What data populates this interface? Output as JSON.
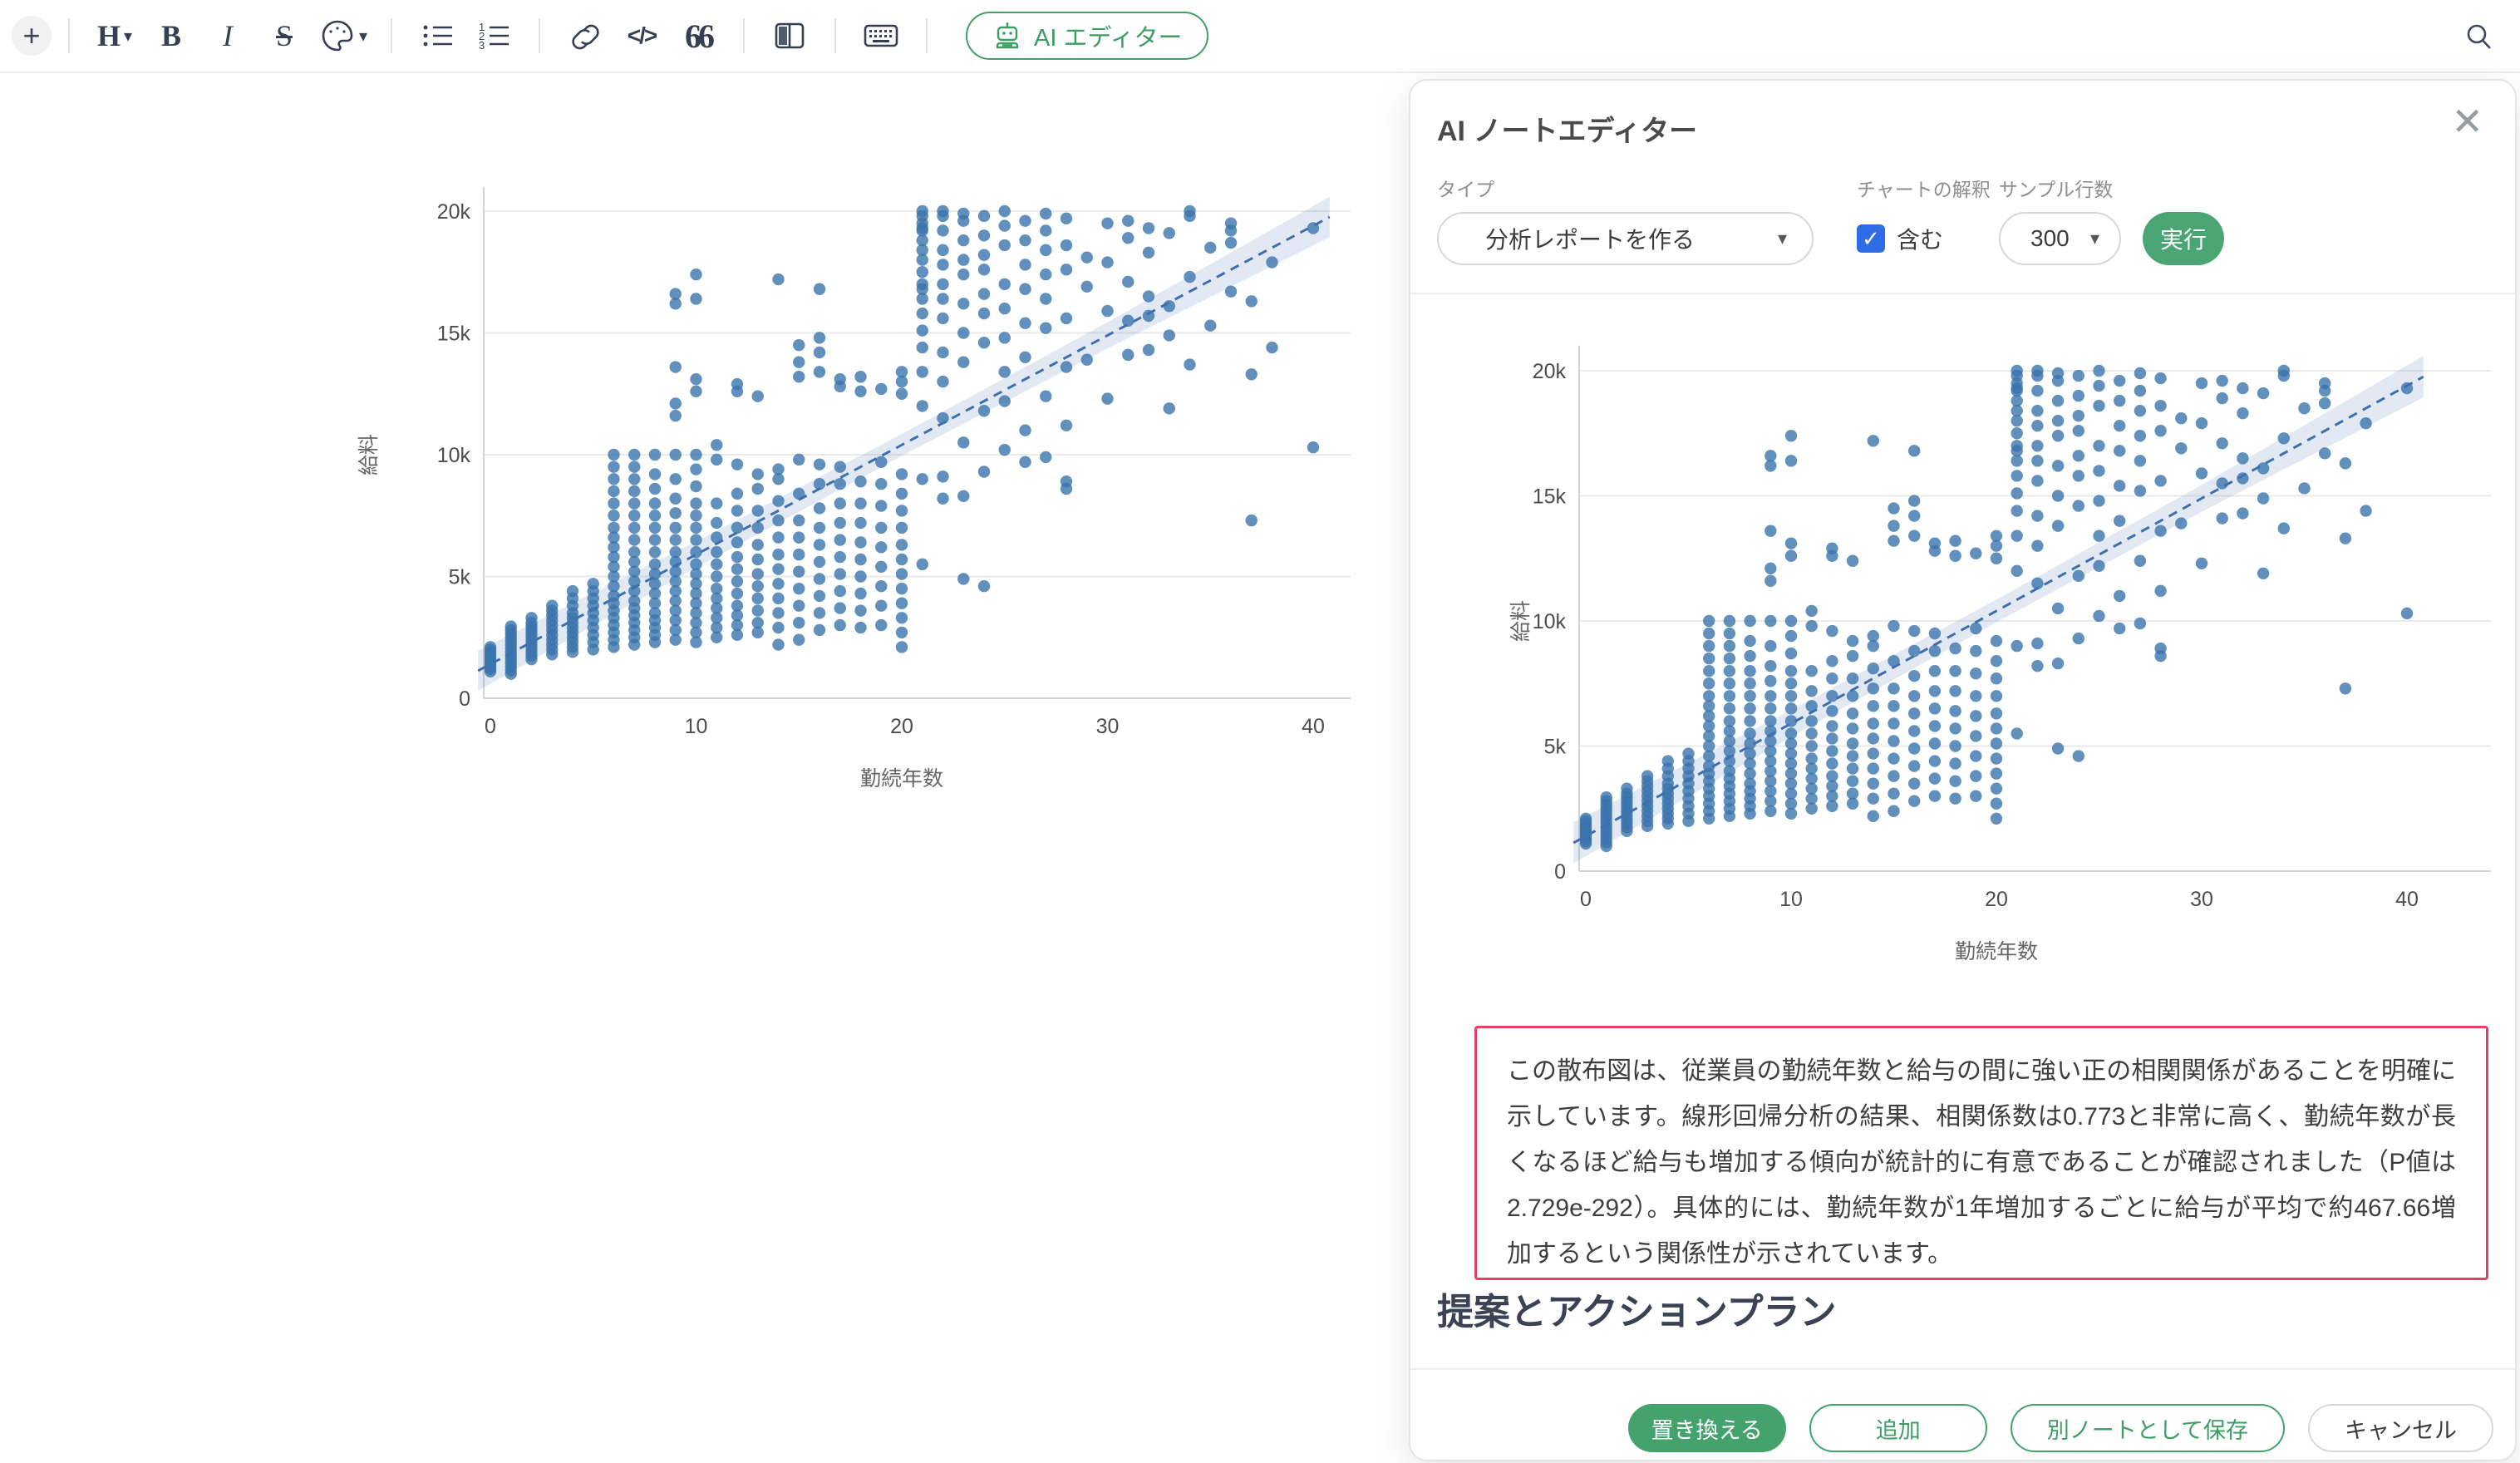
{
  "toolbar": {
    "plus_glyph": "+",
    "heading_glyph": "H",
    "bold_glyph": "B",
    "italic_glyph": "I",
    "strikethrough_glyph": "S",
    "code_glyph": "</>",
    "quote_glyph": "66",
    "caret_glyph": "▾",
    "ai_editor_label": "AI エディター",
    "icon_names": [
      "plus",
      "heading",
      "bold",
      "italic",
      "strikethrough",
      "text-color",
      "bulleted-list",
      "numbered-list",
      "link",
      "code",
      "quote",
      "columns",
      "keyboard",
      "ai-editor",
      "search"
    ]
  },
  "panel": {
    "title": "AI ノートエディター",
    "close_glyph": "✕",
    "controls": {
      "type_label": "タイプ",
      "type_value": "分析レポートを作る",
      "interpretation_label": "チャートの解釈",
      "interpretation_checkbox_label": "含む",
      "interpretation_checked": true,
      "check_glyph": "✓",
      "sample_rows_label": "サンプル行数",
      "sample_rows_value": "300",
      "run_label": "実行"
    },
    "analysis_text": "この散布図は、従業員の勤続年数と給与の間に強い正の相関関係があることを明確に示しています。線形回帰分析の結果、相関係数は0.773と非常に高く、勤続年数が長くなるほど給与も増加する傾向が統計的に有意であることが確認されました（P値は2.729e-292）。具体的には、勤続年数が1年増加するごとに給与が平均で約467.66増加するという関係性が示されています。",
    "section_heading": "提案とアクションプラン",
    "footer": {
      "replace": "置き換える",
      "add": "追加",
      "save_as_new": "別ノートとして保存",
      "cancel": "キャンセル"
    }
  },
  "colors": {
    "accent_green": "#45a36e",
    "checkbox_blue": "#2e6ce8",
    "highlight_red": "#e83e63",
    "point_blue": "#3b74ad",
    "trend_blue": "#3e6fae",
    "grid_gray": "#eaeaea"
  },
  "chart_data": {
    "type": "scatter",
    "title": "",
    "xlabel": "勤続年数",
    "ylabel": "給料",
    "x_ticks": [
      0,
      10,
      20,
      30,
      40
    ],
    "y_ticks_k": [
      0,
      5,
      10,
      15,
      20
    ],
    "y_tick_labels": [
      "0",
      "5k",
      "10k",
      "15k",
      "20k"
    ],
    "xlim": [
      -1,
      42
    ],
    "ylim_k": [
      0,
      21.5
    ],
    "grid": true,
    "legend": false,
    "instances": [
      "editor-note",
      "ai-panel-preview"
    ],
    "regression": {
      "slope_per_year": 467.66,
      "correlation": 0.773,
      "p_value": "2.729e-292",
      "line_style": "dashed",
      "confidence_band": true,
      "draw_intercept_k": 1.4,
      "draw_slope_k_per_year": 0.45
    },
    "points_unit": "y values are salary in thousands (k)",
    "points_by_year": {
      "0": [
        1.1,
        1.2,
        1.3,
        1.4,
        1.5,
        1.6,
        1.7,
        1.8,
        1.9,
        2.0,
        2.1
      ],
      "1": [
        1.0,
        1.15,
        1.3,
        1.45,
        1.6,
        1.75,
        1.9,
        2.05,
        2.2,
        2.35,
        2.5,
        2.65,
        2.8,
        2.95
      ],
      "2": [
        1.6,
        1.75,
        1.9,
        2.05,
        2.2,
        2.35,
        2.5,
        2.65,
        2.8,
        2.95,
        3.1,
        3.3
      ],
      "3": [
        1.8,
        2.0,
        2.2,
        2.4,
        2.6,
        2.8,
        3.0,
        3.2,
        3.4,
        3.6,
        3.8
      ],
      "4": [
        1.9,
        2.1,
        2.3,
        2.5,
        2.7,
        2.9,
        3.1,
        3.3,
        3.5,
        3.8,
        4.1,
        4.4
      ],
      "5": [
        2.0,
        2.3,
        2.6,
        2.9,
        3.2,
        3.5,
        3.8,
        4.1,
        4.4,
        4.7
      ],
      "6": [
        2.1,
        2.4,
        2.7,
        3.0,
        3.3,
        3.6,
        3.9,
        4.2,
        4.6,
        5.0,
        5.4,
        5.8,
        6.2,
        6.6,
        7.0,
        7.5,
        8.0,
        8.5,
        9.0,
        9.5,
        10.0
      ],
      "7": [
        2.2,
        2.5,
        2.8,
        3.1,
        3.4,
        3.7,
        4.0,
        4.4,
        4.8,
        5.2,
        5.6,
        6.0,
        6.5,
        7.0,
        7.5,
        8.0,
        8.5,
        9.0,
        9.5,
        10.0
      ],
      "8": [
        2.3,
        2.6,
        2.9,
        3.2,
        3.5,
        3.9,
        4.3,
        4.7,
        5.1,
        5.5,
        6.0,
        6.5,
        7.0,
        7.5,
        8.0,
        8.6,
        9.2,
        10.0
      ],
      "9": [
        2.4,
        2.8,
        3.2,
        3.6,
        4.0,
        4.4,
        4.8,
        5.2,
        5.6,
        6.0,
        6.5,
        7.0,
        7.6,
        8.2,
        9.0,
        10.0,
        11.6,
        12.1,
        13.6,
        16.2,
        16.6
      ],
      "10": [
        2.3,
        2.7,
        3.1,
        3.5,
        3.9,
        4.3,
        4.7,
        5.1,
        5.5,
        6.0,
        6.5,
        7.0,
        7.5,
        8.0,
        8.7,
        9.4,
        10.0,
        12.6,
        13.1,
        16.4,
        17.4
      ],
      "11": [
        2.5,
        2.9,
        3.3,
        3.7,
        4.1,
        4.5,
        5.0,
        5.5,
        6.0,
        6.6,
        7.2,
        8.0,
        9.8,
        10.4
      ],
      "12": [
        2.6,
        3.0,
        3.4,
        3.8,
        4.3,
        4.8,
        5.3,
        5.8,
        6.4,
        7.0,
        7.7,
        8.4,
        9.6,
        12.6,
        12.9
      ],
      "13": [
        2.7,
        3.1,
        3.6,
        4.1,
        4.6,
        5.1,
        5.7,
        6.3,
        7.0,
        7.7,
        8.6,
        9.2,
        12.4
      ],
      "14": [
        2.2,
        2.9,
        3.5,
        4.1,
        4.7,
        5.3,
        5.9,
        6.6,
        7.3,
        8.1,
        9.0,
        9.4,
        17.2
      ],
      "15": [
        2.4,
        3.1,
        3.8,
        4.5,
        5.2,
        5.9,
        6.6,
        7.3,
        8.4,
        9.8,
        13.2,
        13.8,
        14.5
      ],
      "16": [
        2.8,
        3.5,
        4.2,
        4.9,
        5.6,
        6.3,
        7.0,
        7.8,
        8.8,
        9.6,
        13.4,
        14.2,
        14.8,
        16.8
      ],
      "17": [
        3.0,
        3.7,
        4.4,
        5.1,
        5.8,
        6.5,
        7.2,
        8.0,
        8.8,
        9.5,
        12.8,
        13.1
      ],
      "18": [
        2.9,
        3.6,
        4.3,
        5.0,
        5.7,
        6.4,
        7.2,
        8.0,
        8.9,
        12.6,
        13.2
      ],
      "19": [
        3.0,
        3.8,
        4.6,
        5.4,
        6.2,
        7.0,
        7.9,
        8.8,
        9.7,
        12.7
      ],
      "20": [
        2.1,
        2.7,
        3.3,
        3.9,
        4.5,
        5.1,
        5.7,
        6.3,
        7.0,
        7.7,
        8.4,
        9.2,
        12.5,
        13.0,
        13.4
      ],
      "21": [
        5.5,
        9.0,
        12.0,
        13.4,
        14.4,
        15.1,
        15.8,
        16.4,
        17.0,
        17.5,
        18.0,
        18.4,
        18.8,
        19.2,
        19.5,
        19.8,
        20.0,
        19.3,
        16.8
      ],
      "22": [
        8.2,
        9.1,
        11.5,
        13.0,
        14.2,
        15.6,
        16.4,
        17.0,
        17.8,
        18.4,
        19.2,
        19.8,
        20.0
      ],
      "23": [
        4.9,
        8.3,
        10.5,
        13.8,
        15.0,
        16.2,
        17.4,
        18.0,
        18.8,
        19.6,
        19.9
      ],
      "24": [
        4.6,
        9.3,
        11.8,
        14.6,
        15.8,
        16.6,
        17.6,
        18.2,
        19.0,
        19.8
      ],
      "25": [
        10.2,
        12.2,
        13.4,
        14.8,
        16.0,
        17.0,
        18.6,
        19.4,
        20.0
      ],
      "26": [
        9.7,
        11.0,
        14.0,
        15.4,
        16.8,
        17.8,
        18.8,
        19.6
      ],
      "27": [
        9.9,
        12.4,
        15.2,
        16.4,
        17.4,
        18.4,
        19.2,
        19.9
      ],
      "28": [
        8.6,
        8.9,
        11.2,
        13.6,
        15.6,
        17.6,
        18.6,
        19.7
      ],
      "29": [
        13.9,
        16.9,
        18.1
      ],
      "30": [
        12.3,
        15.9,
        17.9,
        19.5
      ],
      "31": [
        14.1,
        15.5,
        17.1,
        18.9,
        19.6
      ],
      "32": [
        14.3,
        15.7,
        16.5,
        18.3,
        19.3
      ],
      "33": [
        11.9,
        14.9,
        16.1,
        19.1
      ],
      "34": [
        13.7,
        17.3,
        19.8,
        20.0
      ],
      "35": [
        15.3,
        18.5
      ],
      "36": [
        16.7,
        18.7,
        19.2,
        19.5
      ],
      "37": [
        7.3,
        13.3,
        16.3
      ],
      "38": [
        14.4,
        17.9
      ],
      "40": [
        10.3,
        19.3
      ]
    }
  }
}
